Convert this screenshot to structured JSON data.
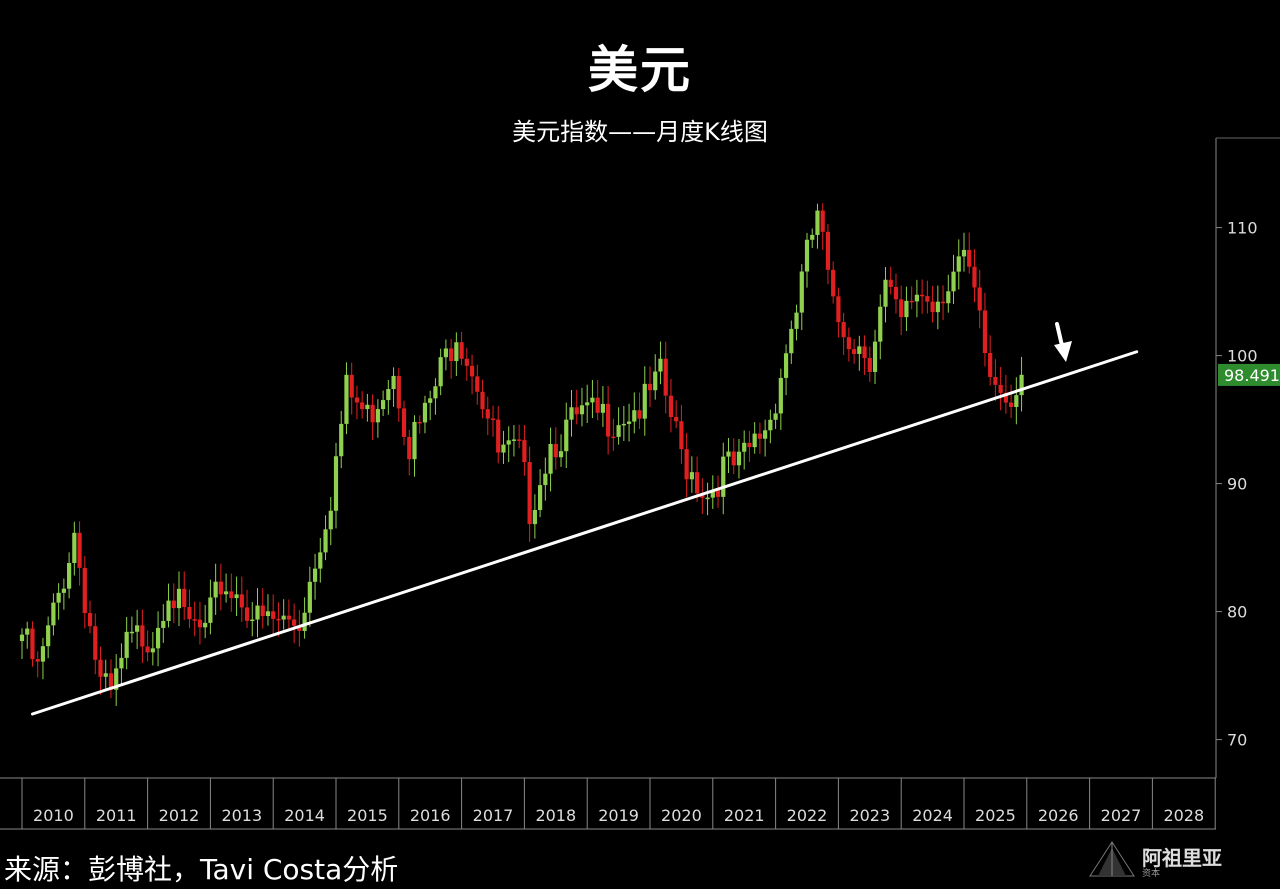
{
  "chart_data": {
    "type": "candlestick",
    "title": "美元",
    "subtitle": "美元指数——月度K线图",
    "x_ticks": [
      "2010",
      "2011",
      "2012",
      "2013",
      "2014",
      "2015",
      "2016",
      "2017",
      "2018",
      "2019",
      "2020",
      "2021",
      "2022",
      "2023",
      "2024",
      "2025",
      "2026",
      "2027",
      "2028"
    ],
    "y_ticks": [
      70,
      80,
      90,
      100,
      110
    ],
    "ylim": [
      67,
      117
    ],
    "last_value": "98.491",
    "path": [
      [
        "2010-01",
        79
      ],
      [
        "2010-04",
        76
      ],
      [
        "2010-08",
        82
      ],
      [
        "2010-11",
        87
      ],
      [
        "2011-01",
        82
      ],
      [
        "2011-04",
        75
      ],
      [
        "2011-06",
        74
      ],
      [
        "2011-09",
        78
      ],
      [
        "2011-12",
        79
      ],
      [
        "2012-02",
        79
      ],
      [
        "2012-05",
        83
      ],
      [
        "2012-08",
        80
      ],
      [
        "2012-12",
        79
      ],
      [
        "2013-03",
        83
      ],
      [
        "2013-07",
        82
      ],
      [
        "2013-10",
        80
      ],
      [
        "2014-03",
        80
      ],
      [
        "2014-06",
        80
      ],
      [
        "2014-09",
        85
      ],
      [
        "2014-12",
        90
      ],
      [
        "2015-03",
        98
      ],
      [
        "2015-07",
        96
      ],
      [
        "2015-12",
        100
      ],
      [
        "2016-03",
        94
      ],
      [
        "2016-06",
        96
      ],
      [
        "2016-12",
        103
      ],
      [
        "2017-04",
        99
      ],
      [
        "2017-08",
        93
      ],
      [
        "2017-12",
        93
      ],
      [
        "2018-02",
        89
      ],
      [
        "2018-06",
        94
      ],
      [
        "2018-12",
        96
      ],
      [
        "2019-06",
        96
      ],
      [
        "2019-12",
        97
      ],
      [
        "2020-03",
        99
      ],
      [
        "2020-07",
        93
      ],
      [
        "2020-12",
        90
      ],
      [
        "2021-03",
        92
      ],
      [
        "2021-06",
        92
      ],
      [
        "2021-12",
        96
      ],
      [
        "2022-04",
        103
      ],
      [
        "2022-09",
        112
      ],
      [
        "2022-12",
        104
      ],
      [
        "2023-04",
        102
      ],
      [
        "2023-07",
        101
      ],
      [
        "2023-10",
        106
      ],
      [
        "2024-01",
        103
      ],
      [
        "2024-04",
        106
      ],
      [
        "2024-07",
        105
      ],
      [
        "2024-12",
        108
      ],
      [
        "2025-02",
        107
      ],
      [
        "2025-06",
        99
      ],
      [
        "2025-09",
        98
      ],
      [
        "2025-12",
        98.5
      ]
    ],
    "up_color": "#8fd14f",
    "down_color": "#e02020",
    "trendline": {
      "start": [
        "2010-03",
        72
      ],
      "end": [
        "2027-10",
        100.3
      ],
      "color": "#ffffff"
    },
    "annotation": "down-arrow"
  },
  "footer": {
    "source": "来源：彭博社，Tavi Costa分析"
  },
  "watermark": {
    "name": "阿祖里亚",
    "sub": "资本"
  }
}
